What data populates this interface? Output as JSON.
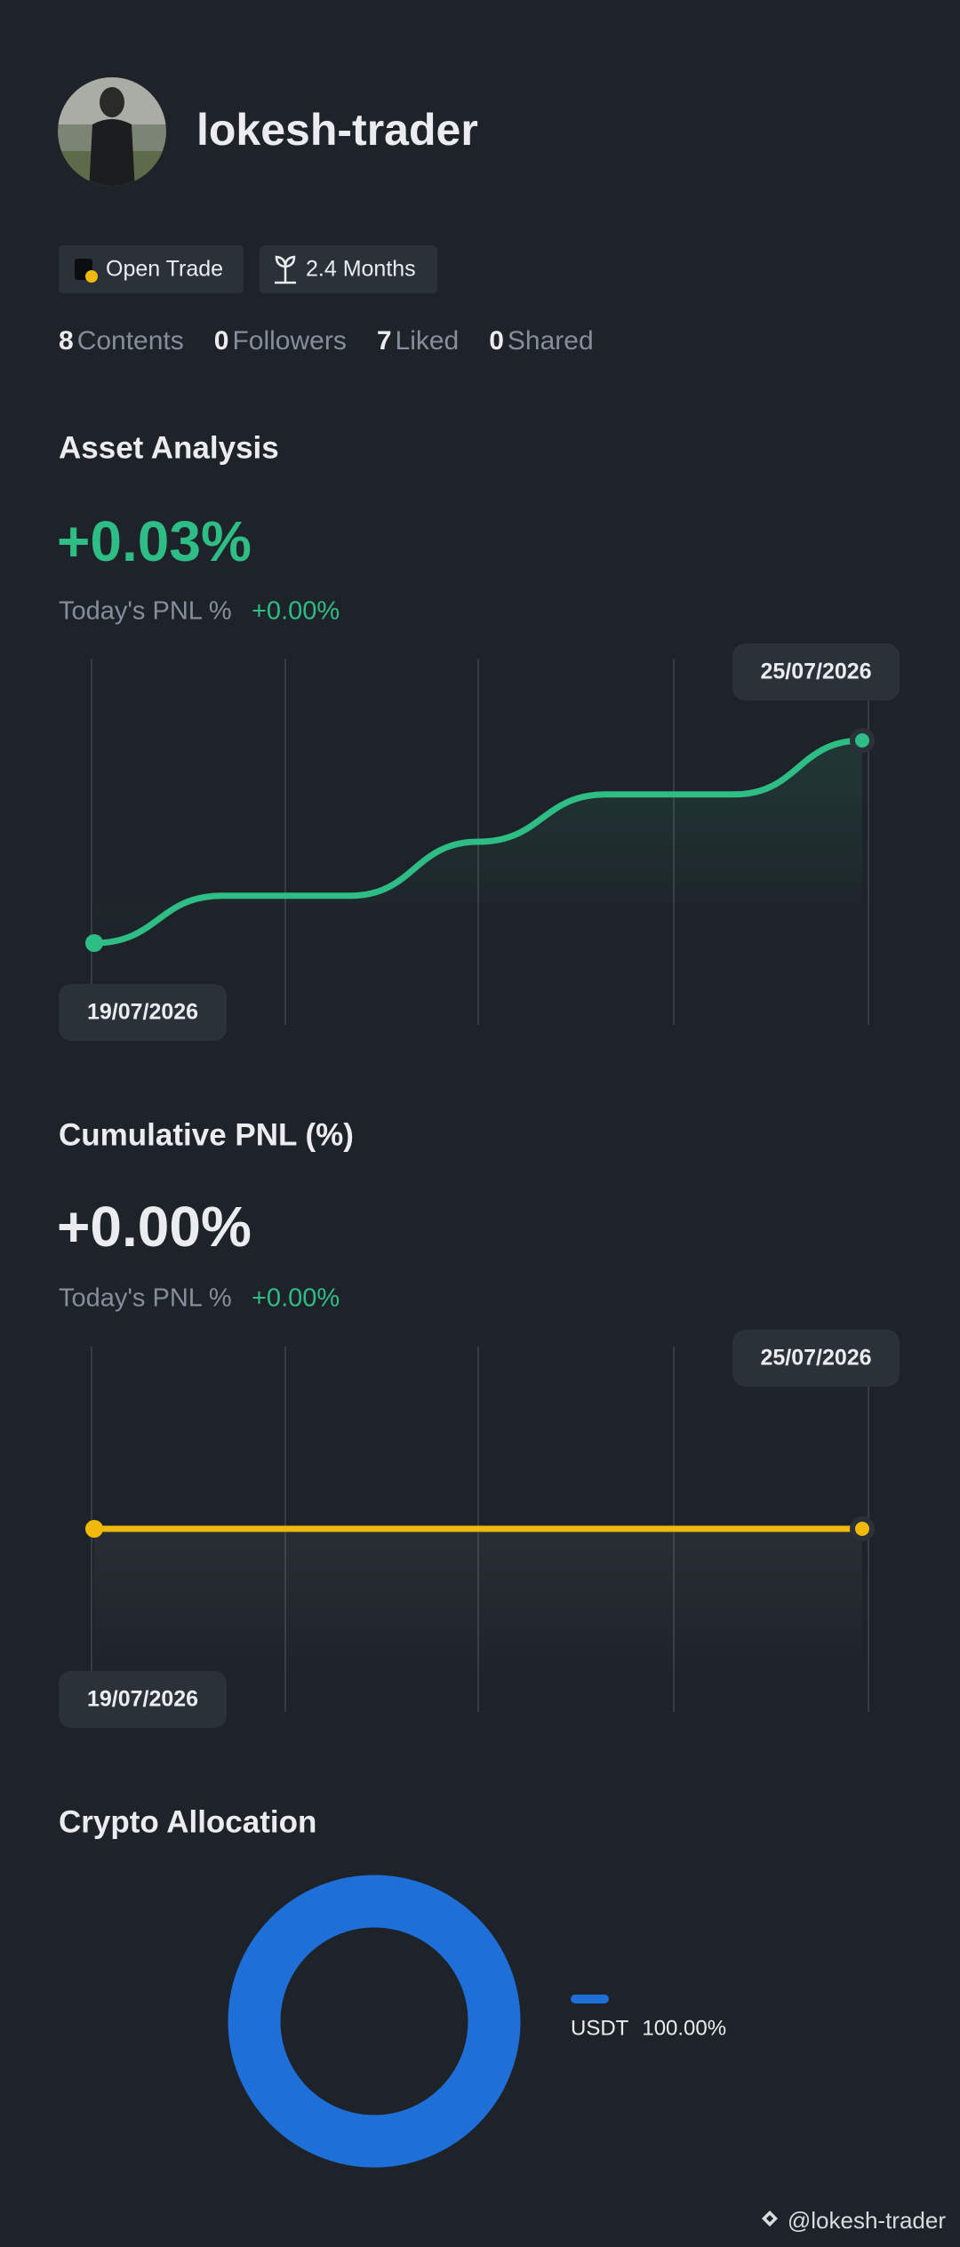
{
  "profile": {
    "username": "lokesh-trader",
    "badges": [
      "Open Trade",
      "2.4 Months"
    ],
    "stats": [
      {
        "value": 8,
        "label": "Contents"
      },
      {
        "value": 0,
        "label": "Followers"
      },
      {
        "value": 7,
        "label": "Liked"
      },
      {
        "value": 0,
        "label": "Shared"
      }
    ]
  },
  "asset_analysis": {
    "title": "Asset Analysis",
    "headline": "+0.03%",
    "today_label": "Today's PNL %",
    "today_value": "+0.00%",
    "chart": {
      "type": "line",
      "x": [
        "19/07/2026",
        null,
        null,
        null,
        null,
        null,
        "25/07/2026"
      ],
      "values": [
        0,
        0.007,
        0.007,
        0.015,
        0.022,
        0.022,
        0.03
      ],
      "color": "#2ebd85"
    }
  },
  "cumulative_pnl": {
    "title": "Cumulative PNL (%)",
    "headline": "+0.00%",
    "today_label": "Today's PNL %",
    "today_value": "+0.00%",
    "chart": {
      "type": "line",
      "x": [
        "19/07/2026",
        null,
        null,
        null,
        null,
        null,
        "25/07/2026"
      ],
      "values": [
        0,
        0,
        0,
        0,
        0,
        0,
        0
      ],
      "color": "#f0b90b"
    }
  },
  "crypto_allocation": {
    "title": "Crypto Allocation",
    "chart": {
      "type": "donut",
      "categories": [
        "USDT"
      ],
      "values": [
        100
      ],
      "value_labels": [
        "100.00%"
      ],
      "colors": [
        "#1f6fd9"
      ]
    }
  },
  "watermark": "@lokesh-trader"
}
